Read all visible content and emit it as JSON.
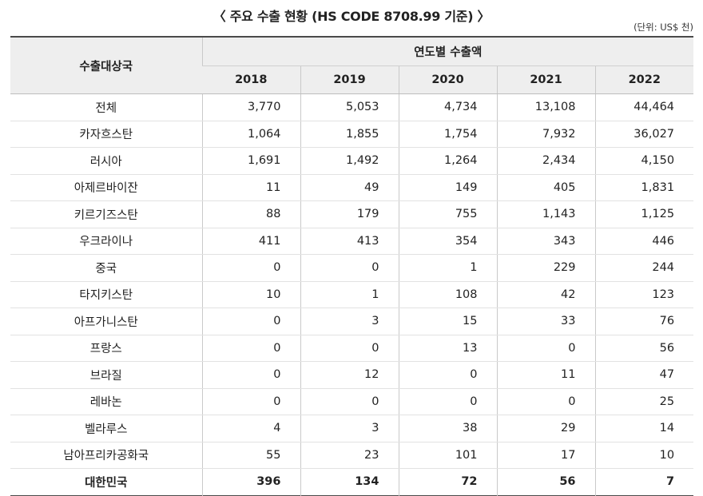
{
  "title": "〈 주요 수출 현황 (HS CODE 8708.99 기준) 〉",
  "unit": "(단위: US$ 천)",
  "table": {
    "row_header": "수출대상국",
    "group_header": "연도별 수출액",
    "years": [
      "2018",
      "2019",
      "2020",
      "2021",
      "2022"
    ],
    "rows": [
      {
        "country": "전체",
        "values": [
          "3,770",
          "5,053",
          "4,734",
          "13,108",
          "44,464"
        ]
      },
      {
        "country": "카자흐스탄",
        "values": [
          "1,064",
          "1,855",
          "1,754",
          "7,932",
          "36,027"
        ]
      },
      {
        "country": "러시아",
        "values": [
          "1,691",
          "1,492",
          "1,264",
          "2,434",
          "4,150"
        ]
      },
      {
        "country": "아제르바이잔",
        "values": [
          "11",
          "49",
          "149",
          "405",
          "1,831"
        ]
      },
      {
        "country": "키르기즈스탄",
        "values": [
          "88",
          "179",
          "755",
          "1,143",
          "1,125"
        ]
      },
      {
        "country": "우크라이나",
        "values": [
          "411",
          "413",
          "354",
          "343",
          "446"
        ]
      },
      {
        "country": "중국",
        "values": [
          "0",
          "0",
          "1",
          "229",
          "244"
        ]
      },
      {
        "country": "타지키스탄",
        "values": [
          "10",
          "1",
          "108",
          "42",
          "123"
        ]
      },
      {
        "country": "아프가니스탄",
        "values": [
          "0",
          "3",
          "15",
          "33",
          "76"
        ]
      },
      {
        "country": "프랑스",
        "values": [
          "0",
          "0",
          "13",
          "0",
          "56"
        ]
      },
      {
        "country": "브라질",
        "values": [
          "0",
          "12",
          "0",
          "11",
          "47"
        ]
      },
      {
        "country": "레바논",
        "values": [
          "0",
          "0",
          "0",
          "0",
          "25"
        ]
      },
      {
        "country": "벨라루스",
        "values": [
          "4",
          "3",
          "38",
          "29",
          "14"
        ]
      },
      {
        "country": "남아프리카공화국",
        "values": [
          "55",
          "23",
          "101",
          "17",
          "10"
        ]
      },
      {
        "country": "대한민국",
        "values": [
          "396",
          "134",
          "72",
          "56",
          "7"
        ]
      }
    ]
  }
}
